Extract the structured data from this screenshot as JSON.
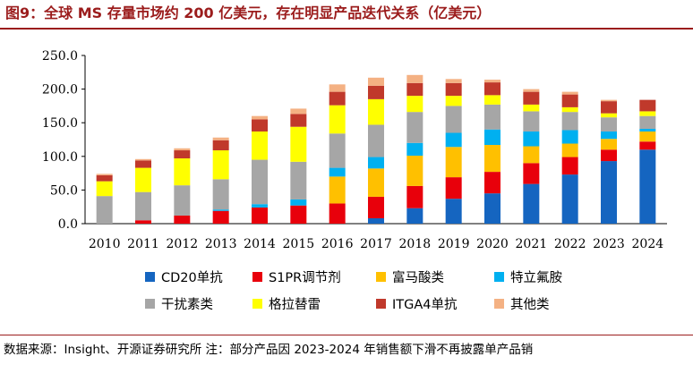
{
  "title": "图9：全球 MS 存量市场约 200 亿美元，存在明显产品迭代关系（亿美元）",
  "source_note": "数据来源：Insight、开源证券研究所 注：部分产品因 2023-2024 年销售额下滑不再披露单产品销",
  "chart_data": {
    "type": "stacked-bar",
    "categories": [
      "2010",
      "2011",
      "2012",
      "2013",
      "2014",
      "2015",
      "2016",
      "2017",
      "2018",
      "2019",
      "2020",
      "2021",
      "2022",
      "2023",
      "2024"
    ],
    "ylim": [
      0,
      250
    ],
    "yticks": [
      0,
      50,
      100,
      150,
      200,
      250
    ],
    "ytick_labels": [
      "0.0",
      "50.0",
      "100.0",
      "150.0",
      "200.0",
      "250.0"
    ],
    "grid": false,
    "legend_position": "bottom",
    "series": [
      {
        "name": "CD20单抗",
        "color": "#1565c0",
        "values": [
          0,
          0,
          0,
          0,
          0,
          0,
          0,
          8,
          23,
          37,
          45,
          59,
          73,
          93,
          110
        ]
      },
      {
        "name": "S1PR调节剂",
        "color": "#e8000b",
        "values": [
          0,
          5,
          12,
          19,
          24,
          27,
          30,
          32,
          33,
          32,
          32,
          31,
          26,
          17,
          12
        ]
      },
      {
        "name": "富马酸类",
        "color": "#ffc000",
        "values": [
          0,
          0,
          0,
          0,
          0,
          0,
          40,
          42,
          45,
          45,
          40,
          25,
          20,
          16,
          15
        ]
      },
      {
        "name": "特立氟胺",
        "color": "#00b0f0",
        "values": [
          0,
          0,
          0,
          2,
          5,
          9,
          13,
          17,
          19,
          21,
          23,
          22,
          20,
          11,
          4
        ]
      },
      {
        "name": "干扰素类",
        "color": "#a6a6a6",
        "values": [
          41,
          42,
          45,
          45,
          66,
          56,
          51,
          48,
          46,
          40,
          37,
          30,
          27,
          21,
          19
        ]
      },
      {
        "name": "格拉替雷",
        "color": "#ffff00",
        "values": [
          22,
          36,
          40,
          43,
          42,
          52,
          42,
          38,
          24,
          15,
          14,
          10,
          7,
          6,
          7
        ]
      },
      {
        "name": "ITGA4单抗",
        "color": "#c0392b",
        "values": [
          9,
          11,
          12,
          15,
          18,
          19,
          20,
          20,
          19,
          19,
          19,
          19,
          19,
          18,
          17
        ]
      },
      {
        "name": "其他类",
        "color": "#f4b183",
        "values": [
          2,
          2,
          3,
          4,
          5,
          8,
          11,
          12,
          12,
          6,
          4,
          4,
          4,
          2,
          0
        ]
      }
    ]
  }
}
